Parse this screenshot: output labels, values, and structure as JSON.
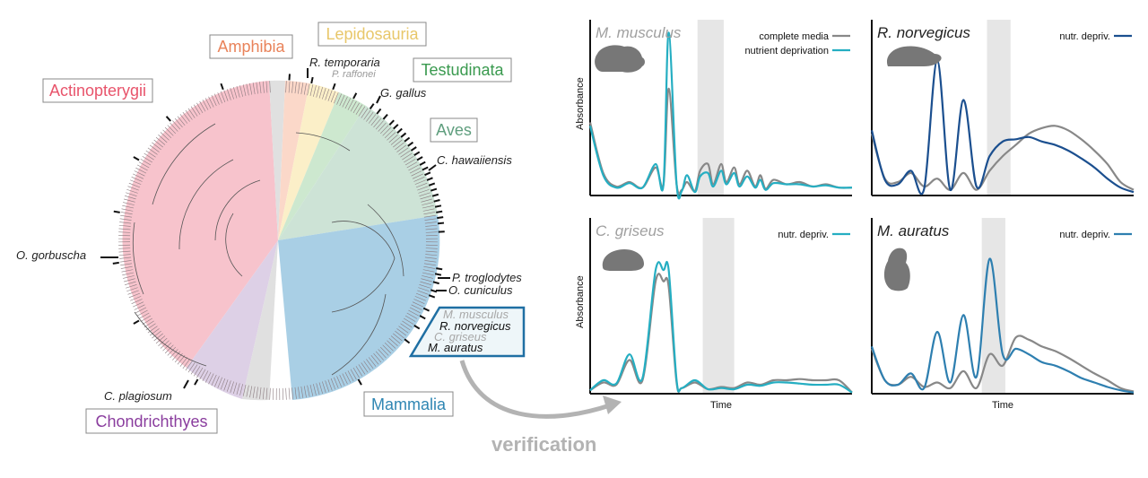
{
  "tree": {
    "clades": [
      {
        "name": "Actinopterygii",
        "color": "#e8546b",
        "fill": "#f7c3cc"
      },
      {
        "name": "Amphibia",
        "color": "#e9835a",
        "fill": "#fbd8c9"
      },
      {
        "name": "Lepidosauria",
        "color": "#e8c76a",
        "fill": "#fbefc8"
      },
      {
        "name": "Testudinata",
        "color": "#3a9a4f",
        "fill": "#cde8cf"
      },
      {
        "name": "Aves",
        "color": "#5f9e7e",
        "fill": "#cde3d6"
      },
      {
        "name": "Mammalia",
        "color": "#2f86b3",
        "fill": "#a9cfe5"
      },
      {
        "name": "Chondrichthyes",
        "color": "#8a3d9e",
        "fill": "#ddd0e6"
      }
    ],
    "species_labels": [
      {
        "text": "R. temporaria",
        "color": "#222222"
      },
      {
        "text": "P. raffonei",
        "color": "#9a9a9a"
      },
      {
        "text": "G. gallus",
        "color": "#222222"
      },
      {
        "text": "C. hawaiiensis",
        "color": "#222222"
      },
      {
        "text": "O. gorbuscha",
        "color": "#222222"
      },
      {
        "text": "P. troglodytes",
        "color": "#222222"
      },
      {
        "text": "O. cuniculus",
        "color": "#222222"
      },
      {
        "text": "C. plagiosum",
        "color": "#222222"
      }
    ],
    "highlight_box": [
      {
        "text": "M. musculus",
        "color": "#a8a8a8"
      },
      {
        "text": "R. norvegicus",
        "color": "#111111"
      },
      {
        "text": "C. griseus",
        "color": "#a8a8a8"
      },
      {
        "text": "M. auratus",
        "color": "#111111"
      }
    ],
    "highlight_color": "#1f6fa3",
    "arrow_label": "verification"
  },
  "colors": {
    "complete_media": "#888888",
    "teal": "#25aec2",
    "navy": "#1b4f8f",
    "steel": "#2e7fb0",
    "shade": "#e6e6e6",
    "silhouette": "#777777",
    "arrow": "#b3b3b3"
  },
  "chart_data": [
    {
      "type": "line",
      "title": "M. musculus",
      "title_color": "#a0a0a0",
      "xlabel": "",
      "ylabel": "Absorbance",
      "legend": "top-right",
      "series": [
        {
          "name": "complete media",
          "color": "#888888",
          "x": [
            0,
            0.05,
            0.1,
            0.15,
            0.2,
            0.25,
            0.28,
            0.3,
            0.33,
            0.35,
            0.37,
            0.4,
            0.42,
            0.45,
            0.47,
            0.5,
            0.52,
            0.55,
            0.57,
            0.6,
            0.63,
            0.65,
            0.67,
            0.7,
            0.75,
            0.8,
            0.85,
            0.9,
            0.95,
            1.0
          ],
          "y": [
            0.65,
            0.2,
            0.08,
            0.12,
            0.07,
            0.25,
            0.1,
            0.95,
            0.1,
            0.05,
            0.12,
            0.04,
            0.22,
            0.28,
            0.1,
            0.28,
            0.12,
            0.25,
            0.1,
            0.22,
            0.08,
            0.18,
            0.06,
            0.14,
            0.1,
            0.12,
            0.08,
            0.1,
            0.07,
            0.07
          ]
        },
        {
          "name": "nutrient deprivation",
          "color": "#25aec2",
          "x": [
            0,
            0.05,
            0.1,
            0.15,
            0.2,
            0.25,
            0.28,
            0.3,
            0.33,
            0.35,
            0.37,
            0.4,
            0.42,
            0.45,
            0.47,
            0.5,
            0.52,
            0.55,
            0.57,
            0.6,
            0.63,
            0.65,
            0.67,
            0.7,
            0.75,
            0.8,
            0.85,
            0.9,
            0.95,
            1.0
          ],
          "y": [
            0.62,
            0.18,
            0.07,
            0.11,
            0.07,
            0.28,
            0.1,
            1.45,
            0.1,
            0.04,
            0.18,
            0.03,
            0.17,
            0.2,
            0.08,
            0.22,
            0.1,
            0.2,
            0.08,
            0.17,
            0.07,
            0.14,
            0.05,
            0.11,
            0.1,
            0.1,
            0.08,
            0.09,
            0.07,
            0.07
          ]
        }
      ]
    },
    {
      "type": "line",
      "title": "R. norvegicus",
      "title_color": "#222222",
      "xlabel": "",
      "ylabel": "",
      "legend": "top-right",
      "series": [
        {
          "name": "",
          "color": "#888888",
          "x": [
            0,
            0.05,
            0.1,
            0.15,
            0.2,
            0.25,
            0.3,
            0.35,
            0.4,
            0.45,
            0.5,
            0.55,
            0.6,
            0.65,
            0.7,
            0.75,
            0.8,
            0.85,
            0.9,
            0.95,
            1.0
          ],
          "y": [
            0.55,
            0.15,
            0.12,
            0.2,
            0.08,
            0.15,
            0.05,
            0.2,
            0.05,
            0.22,
            0.35,
            0.45,
            0.55,
            0.6,
            0.62,
            0.58,
            0.5,
            0.4,
            0.28,
            0.12,
            0.05
          ]
        },
        {
          "name": "nutr. depriv.",
          "color": "#1b4f8f",
          "x": [
            0,
            0.05,
            0.1,
            0.15,
            0.2,
            0.25,
            0.3,
            0.35,
            0.4,
            0.45,
            0.5,
            0.55,
            0.6,
            0.65,
            0.7,
            0.75,
            0.8,
            0.85,
            0.9,
            0.95,
            1.0
          ],
          "y": [
            0.58,
            0.14,
            0.1,
            0.22,
            0.06,
            1.2,
            0.05,
            0.85,
            0.08,
            0.35,
            0.48,
            0.5,
            0.52,
            0.48,
            0.45,
            0.4,
            0.33,
            0.25,
            0.15,
            0.07,
            0.03
          ]
        }
      ]
    },
    {
      "type": "line",
      "title": "C. griseus",
      "title_color": "#a0a0a0",
      "xlabel": "Time",
      "ylabel": "Absorbance",
      "legend": "top-right",
      "series": [
        {
          "name": "",
          "color": "#888888",
          "x": [
            0,
            0.05,
            0.1,
            0.15,
            0.2,
            0.25,
            0.28,
            0.3,
            0.33,
            0.35,
            0.4,
            0.45,
            0.5,
            0.55,
            0.6,
            0.65,
            0.7,
            0.75,
            0.8,
            0.85,
            0.9,
            0.95,
            1.0
          ],
          "y": [
            0.03,
            0.1,
            0.08,
            0.3,
            0.12,
            1.0,
            1.0,
            0.95,
            0.1,
            0.05,
            0.1,
            0.04,
            0.06,
            0.05,
            0.1,
            0.08,
            0.12,
            0.12,
            0.13,
            0.12,
            0.12,
            0.12,
            0.01
          ]
        },
        {
          "name": "nutr. depriv.",
          "color": "#25aec2",
          "x": [
            0,
            0.05,
            0.1,
            0.15,
            0.2,
            0.25,
            0.28,
            0.3,
            0.33,
            0.35,
            0.4,
            0.45,
            0.5,
            0.55,
            0.6,
            0.65,
            0.7,
            0.75,
            0.8,
            0.85,
            0.9,
            0.95,
            1.0
          ],
          "y": [
            0.03,
            0.12,
            0.09,
            0.35,
            0.14,
            1.1,
            1.1,
            1.1,
            0.12,
            0.05,
            0.12,
            0.04,
            0.05,
            0.04,
            0.08,
            0.07,
            0.1,
            0.1,
            0.09,
            0.08,
            0.08,
            0.08,
            0.01
          ]
        }
      ]
    },
    {
      "type": "line",
      "title": "M. auratus",
      "title_color": "#222222",
      "xlabel": "Time",
      "ylabel": "",
      "legend": "top-right",
      "series": [
        {
          "name": "",
          "color": "#888888",
          "x": [
            0,
            0.05,
            0.1,
            0.15,
            0.2,
            0.25,
            0.3,
            0.35,
            0.4,
            0.45,
            0.5,
            0.55,
            0.6,
            0.65,
            0.7,
            0.75,
            0.8,
            0.85,
            0.9,
            0.95,
            1.0
          ],
          "y": [
            0.4,
            0.12,
            0.08,
            0.15,
            0.06,
            0.1,
            0.05,
            0.2,
            0.05,
            0.35,
            0.25,
            0.5,
            0.48,
            0.42,
            0.38,
            0.32,
            0.25,
            0.18,
            0.12,
            0.05,
            0.02
          ]
        },
        {
          "name": "nutr. depriv.",
          "color": "#2e7fb0",
          "x": [
            0,
            0.05,
            0.1,
            0.15,
            0.2,
            0.25,
            0.3,
            0.35,
            0.4,
            0.45,
            0.5,
            0.55,
            0.6,
            0.65,
            0.7,
            0.75,
            0.8,
            0.85,
            0.9,
            0.95,
            1.0
          ],
          "y": [
            0.42,
            0.12,
            0.08,
            0.18,
            0.05,
            0.55,
            0.1,
            0.7,
            0.15,
            1.2,
            0.35,
            0.4,
            0.35,
            0.28,
            0.25,
            0.2,
            0.14,
            0.1,
            0.06,
            0.03,
            0.01
          ]
        }
      ]
    }
  ]
}
